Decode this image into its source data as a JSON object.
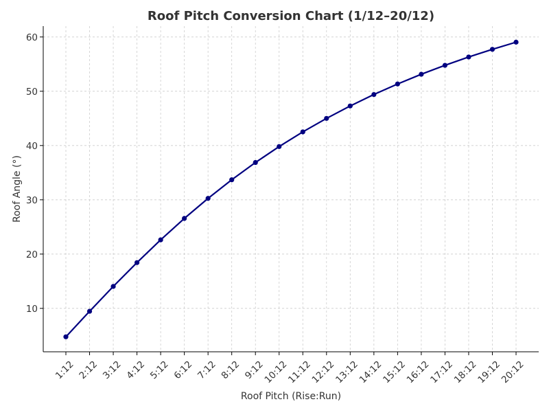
{
  "chart_data": {
    "type": "line",
    "title": "Roof Pitch Conversion Chart (1/12–20/12)",
    "xlabel": "Roof Pitch (Rise:Run)",
    "ylabel": "Roof Angle (°)",
    "categories": [
      "1:12",
      "2:12",
      "3:12",
      "4:12",
      "5:12",
      "6:12",
      "7:12",
      "8:12",
      "9:12",
      "10:12",
      "11:12",
      "12:12",
      "13:12",
      "14:12",
      "15:12",
      "16:12",
      "17:12",
      "18:12",
      "19:12",
      "20:12"
    ],
    "series": [
      {
        "values": [
          4.76,
          9.46,
          14.04,
          18.43,
          22.62,
          26.57,
          30.26,
          33.69,
          36.87,
          39.81,
          42.51,
          45.0,
          47.29,
          49.4,
          51.34,
          53.13,
          54.78,
          56.31,
          57.72,
          59.04
        ]
      }
    ],
    "ylim": [
      2,
      62
    ],
    "yticks": [
      10,
      20,
      30,
      40,
      50,
      60
    ],
    "grid": true,
    "line_color": "#000080",
    "marker_color": "#000080"
  }
}
